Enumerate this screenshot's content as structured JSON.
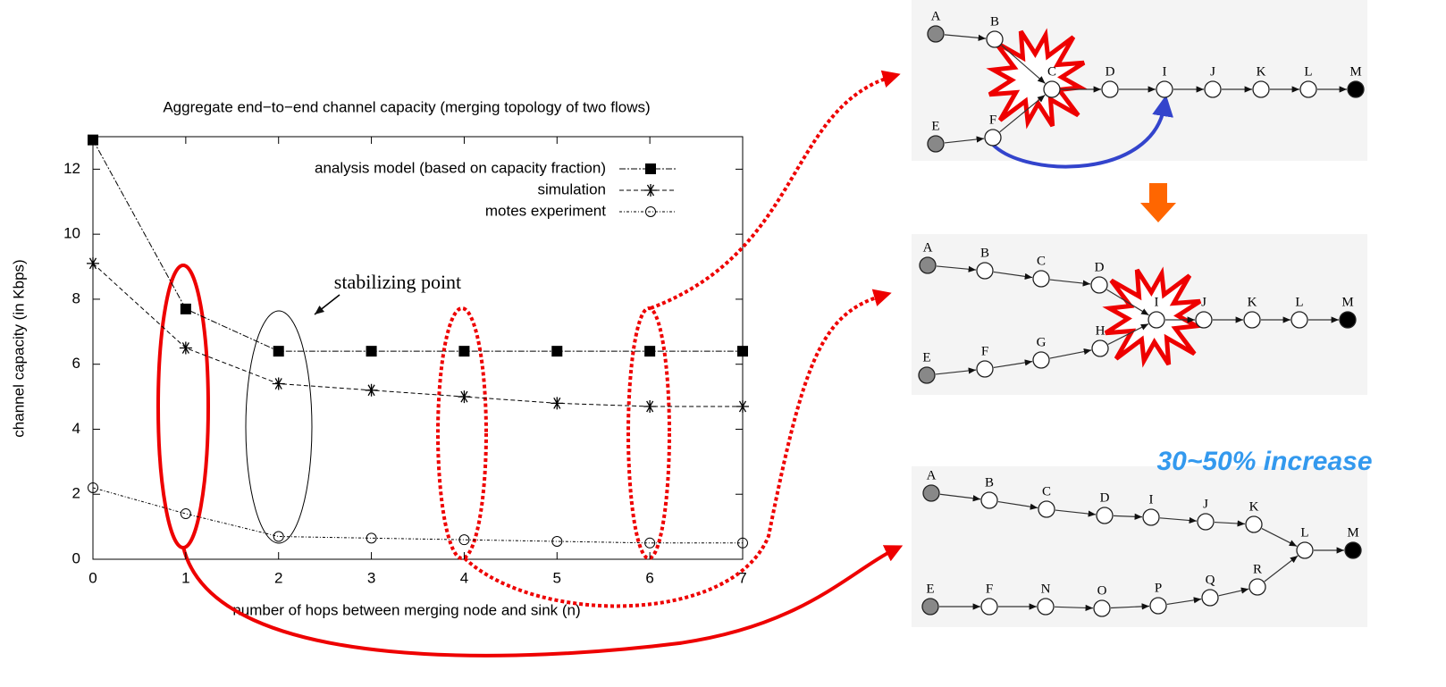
{
  "chart_data": {
    "type": "line",
    "title": "Aggregate end−to−end channel capacity (merging topology of two flows)",
    "x_label": "number of hops between merging node and sink (n)",
    "y_label": "channel capacity (in Kbps)",
    "x": [
      0,
      1,
      2,
      3,
      4,
      5,
      6,
      7
    ],
    "xlim": [
      0,
      7
    ],
    "ylim": [
      0,
      13
    ],
    "xticks": [
      0,
      1,
      2,
      3,
      4,
      5,
      6,
      7
    ],
    "yticks": [
      0,
      2,
      4,
      6,
      8,
      10,
      12
    ],
    "series": [
      {
        "name": "analysis model (based on capacity fraction)",
        "color": "#000000",
        "marker": "filled-square",
        "values": [
          12.9,
          7.7,
          6.4,
          6.4,
          6.4,
          6.4,
          6.4,
          6.4
        ]
      },
      {
        "name": "simulation",
        "color": "#000000",
        "marker": "asterisk",
        "values": [
          9.1,
          6.5,
          5.4,
          5.2,
          5.0,
          4.8,
          4.7,
          4.7
        ]
      },
      {
        "name": "motes experiment",
        "color": "#000000",
        "marker": "open-circle",
        "values": [
          2.2,
          1.4,
          0.7,
          0.65,
          0.6,
          0.55,
          0.5,
          0.5
        ]
      }
    ],
    "annotation": "stabilizing point"
  },
  "diagrams": [
    {
      "nodes": [
        "A",
        "B",
        "C",
        "D",
        "I",
        "J",
        "K",
        "L",
        "M",
        "E",
        "F"
      ]
    },
    {
      "nodes": [
        "A",
        "B",
        "C",
        "D",
        "I",
        "J",
        "K",
        "L",
        "M",
        "E",
        "F",
        "G",
        "H"
      ]
    },
    {
      "nodes": [
        "A",
        "B",
        "C",
        "D",
        "I",
        "J",
        "K",
        "L",
        "M",
        "E",
        "F",
        "N",
        "O",
        "P",
        "Q",
        "R"
      ]
    }
  ],
  "callout": "30~50% increase"
}
